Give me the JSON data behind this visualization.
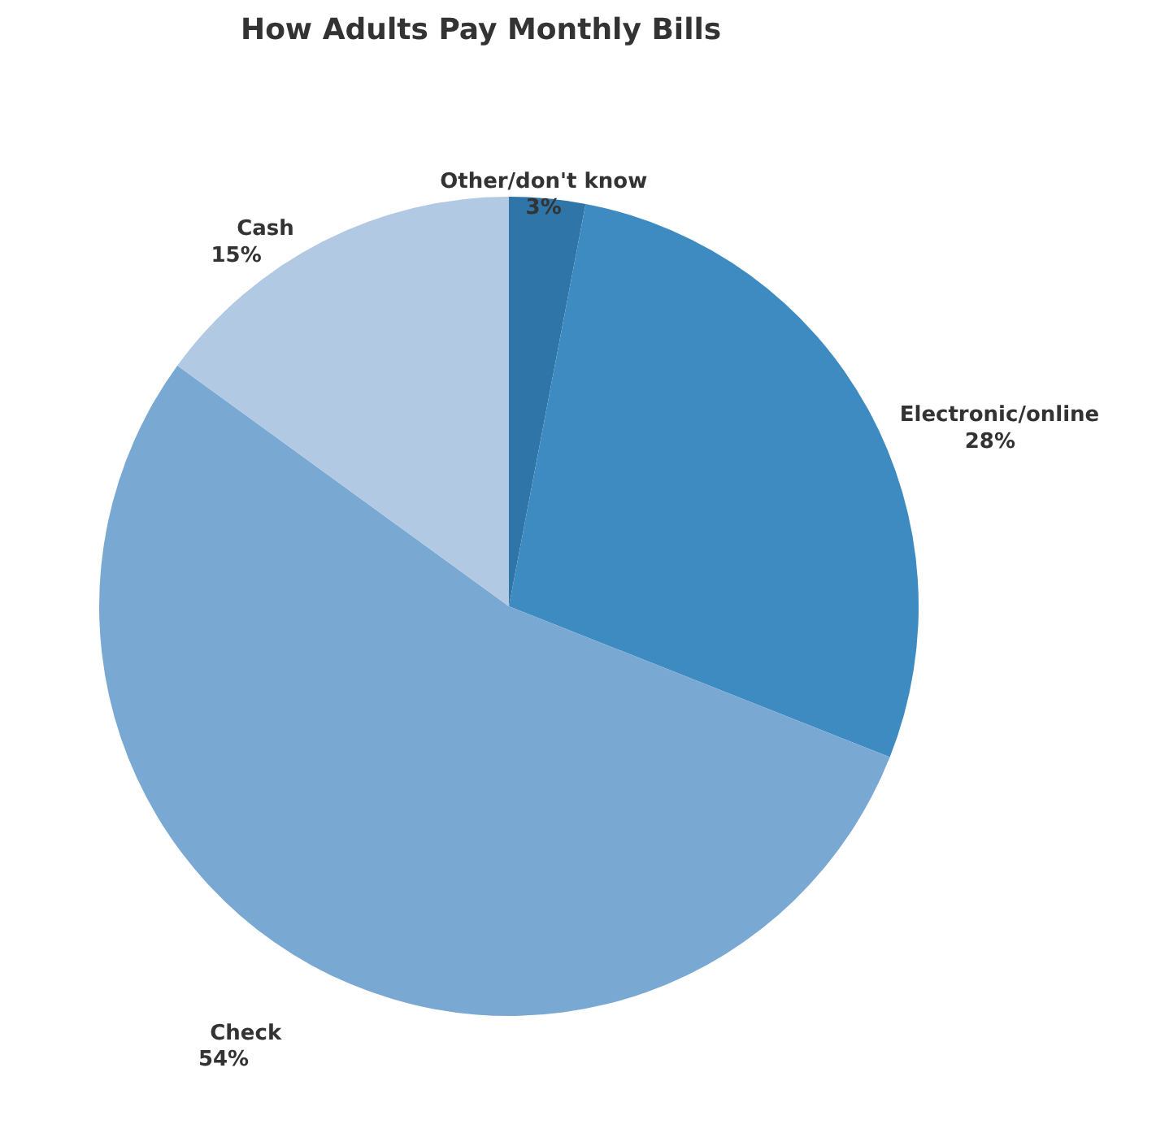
{
  "chart_data": {
    "type": "pie",
    "title": "How Adults Pay Monthly Bills",
    "categories": [
      "Other/don't know",
      "Electronic/online",
      "Check",
      "Cash"
    ],
    "values": [
      3,
      28,
      54,
      15
    ],
    "value_labels": [
      "3%",
      "28%",
      "54%",
      "15%"
    ],
    "colors": [
      "#2f75a8",
      "#3d8bc1",
      "#79a9d3",
      "#b2c9e3"
    ],
    "legend": false
  }
}
